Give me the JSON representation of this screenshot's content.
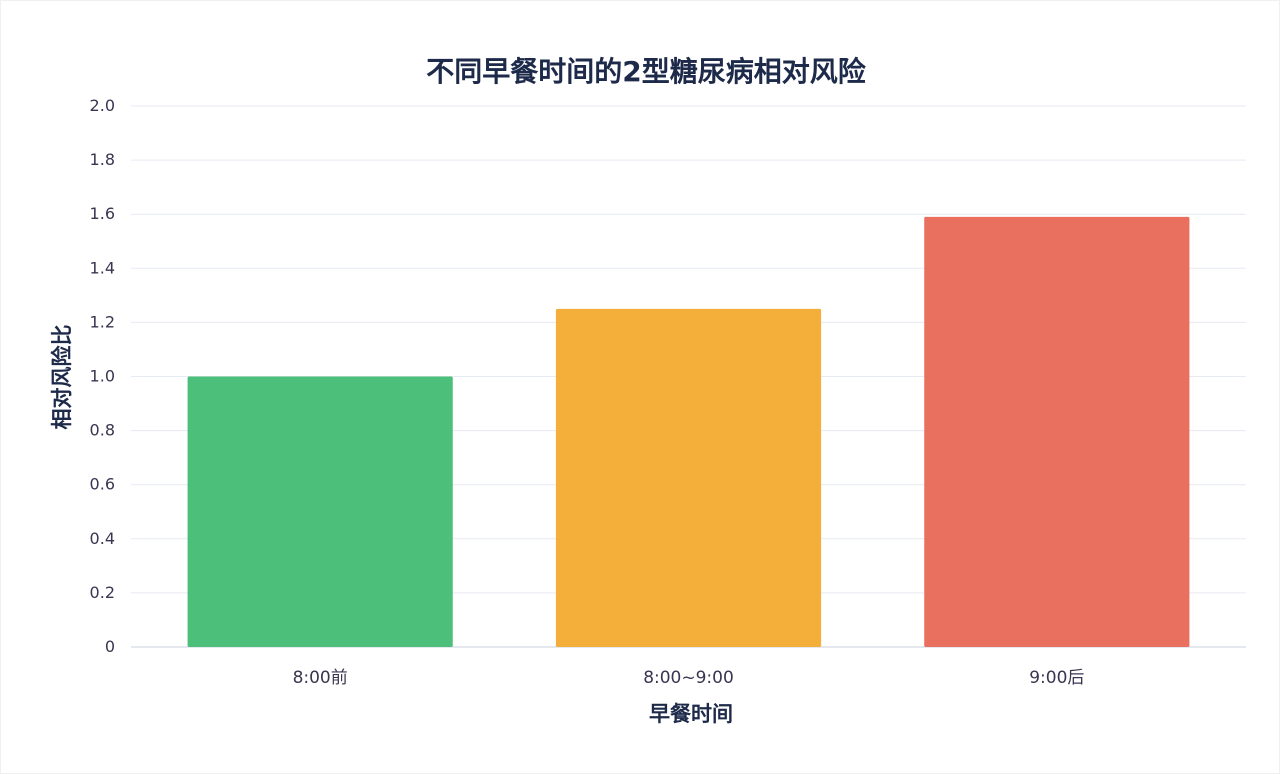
{
  "chart_data": {
    "type": "bar",
    "title": "不同早餐时间的2型糖尿病相对风险",
    "xlabel": "早餐时间",
    "ylabel": "相对风险比",
    "categories": [
      "8:00前",
      "8:00~9:00",
      "9:00后"
    ],
    "values": [
      1.0,
      1.25,
      1.59
    ],
    "colors": [
      "#4cbf7a",
      "#f4ae3a",
      "#e9705e"
    ],
    "ylim": [
      0,
      2.0
    ],
    "yticks": [
      {
        "value": 0,
        "label": "0"
      },
      {
        "value": 0.2,
        "label": "0.2"
      },
      {
        "value": 0.4,
        "label": "0.4"
      },
      {
        "value": 0.6,
        "label": "0.6"
      },
      {
        "value": 0.8,
        "label": "0.8"
      },
      {
        "value": 1.0,
        "label": "1.0"
      },
      {
        "value": 1.2,
        "label": "1.2"
      },
      {
        "value": 1.4,
        "label": "1.4"
      },
      {
        "value": 1.6,
        "label": "1.6"
      },
      {
        "value": 1.8,
        "label": "1.8"
      },
      {
        "value": 2.0,
        "label": "2.0"
      }
    ],
    "grid": true,
    "legend": "none"
  }
}
